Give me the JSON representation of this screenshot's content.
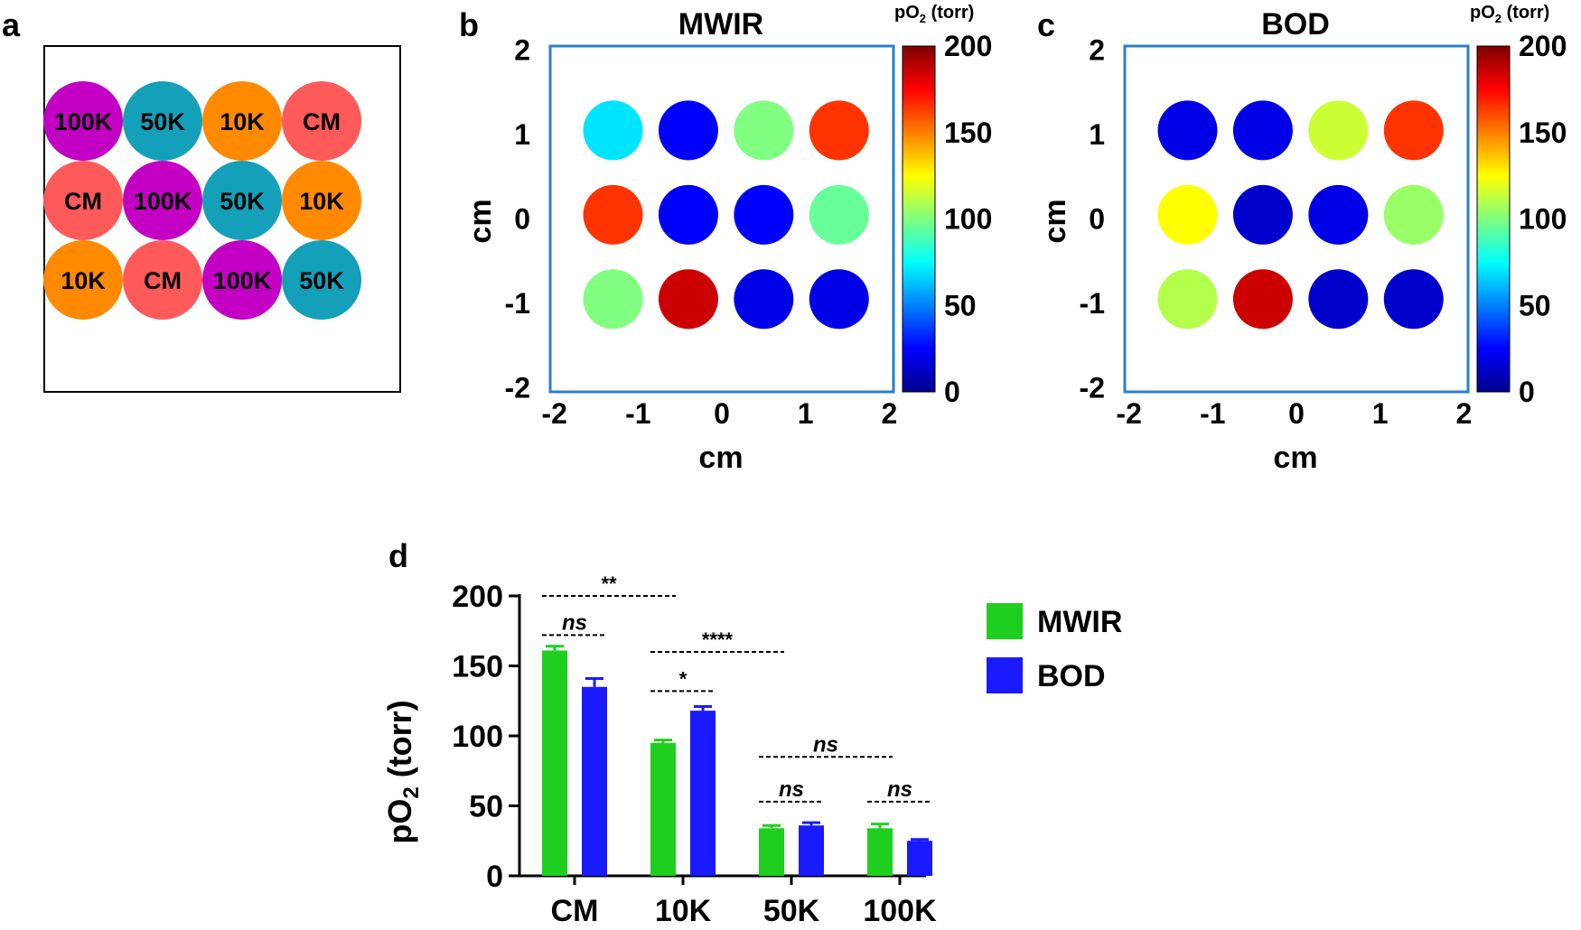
{
  "panels": {
    "a": "a",
    "b": "b",
    "c": "c",
    "d": "d"
  },
  "layout_grid": {
    "rows": [
      [
        "100K",
        "50K",
        "10K",
        "CM"
      ],
      [
        "CM",
        "100K",
        "50K",
        "10K"
      ],
      [
        "10K",
        "CM",
        "100K",
        "50K"
      ]
    ],
    "colors": {
      "100K": "#c300c3",
      "50K": "#13a0b8",
      "10K": "#ff8a00",
      "CM": "#ff5a5a"
    }
  },
  "maps": [
    {
      "title": "MWIR",
      "cbar_title": "pO",
      "cbar_sub": "2",
      "cbar_unit": " (torr)",
      "cbar_ticks": [
        "200",
        "150",
        "100",
        "50",
        "0"
      ],
      "x_ticks": [
        "-2",
        "-1",
        "0",
        "1",
        "2"
      ],
      "y_ticks": [
        "2",
        "1",
        "0",
        "-1",
        "-2"
      ],
      "xlabel": "cm",
      "ylabel": "cm",
      "border_color": "#2c7fc8",
      "spots_po2": [
        [
          70,
          25,
          100,
          165
        ],
        [
          165,
          25,
          25,
          95
        ],
        [
          100,
          185,
          20,
          20
        ]
      ]
    },
    {
      "title": "BOD",
      "cbar_title": "pO",
      "cbar_sub": "2",
      "cbar_unit": " (torr)",
      "cbar_ticks": [
        "200",
        "150",
        "100",
        "50",
        "0"
      ],
      "x_ticks": [
        "-2",
        "-1",
        "0",
        "1",
        "2"
      ],
      "y_ticks": [
        "2",
        "1",
        "0",
        "-1",
        "-2"
      ],
      "xlabel": "cm",
      "ylabel": "cm",
      "border_color": "#2c7fc8",
      "spots_po2": [
        [
          20,
          20,
          115,
          165
        ],
        [
          125,
          15,
          20,
          105
        ],
        [
          110,
          185,
          15,
          15
        ]
      ]
    }
  ],
  "chart_data": {
    "type": "bar",
    "categories": [
      "CM",
      "10K",
      "50K",
      "100K"
    ],
    "series": [
      {
        "name": "MWIR",
        "values": [
          161,
          95,
          34,
          34
        ],
        "errors": [
          3,
          2,
          2,
          3
        ],
        "color": "#1fcf1f"
      },
      {
        "name": "BOD",
        "values": [
          135,
          118,
          36,
          25
        ],
        "errors": [
          6,
          3,
          2,
          1
        ],
        "color": "#1a1aff"
      }
    ],
    "ylabel": "pO",
    "ylabel_sub": "2",
    "ylabel_unit": " (torr)",
    "ylim": [
      0,
      200
    ],
    "y_ticks": [
      "0",
      "50",
      "100",
      "150",
      "200"
    ],
    "significance": [
      {
        "label": "**",
        "from": "CM:MWIR",
        "to": "10K:MWIR",
        "y": 200,
        "italic": false
      },
      {
        "label": "ns",
        "from": "CM:MWIR",
        "to": "CM:BOD",
        "y": 172,
        "italic": true
      },
      {
        "label": "****",
        "from": "10K:MWIR",
        "to": "50K:MWIR",
        "y": 160,
        "italic": false
      },
      {
        "label": "*",
        "from": "10K:MWIR",
        "to": "10K:BOD",
        "y": 132,
        "italic": false
      },
      {
        "label": "ns",
        "from": "50K:MWIR",
        "to": "100K:MWIR",
        "y": 85,
        "italic": true
      },
      {
        "label": "ns",
        "from": "50K:MWIR",
        "to": "50K:BOD",
        "y": 53,
        "italic": true
      },
      {
        "label": "ns",
        "from": "100K:MWIR",
        "to": "100K:BOD",
        "y": 53,
        "italic": true
      }
    ],
    "legend": [
      "MWIR",
      "BOD"
    ],
    "legend_position": "right"
  }
}
